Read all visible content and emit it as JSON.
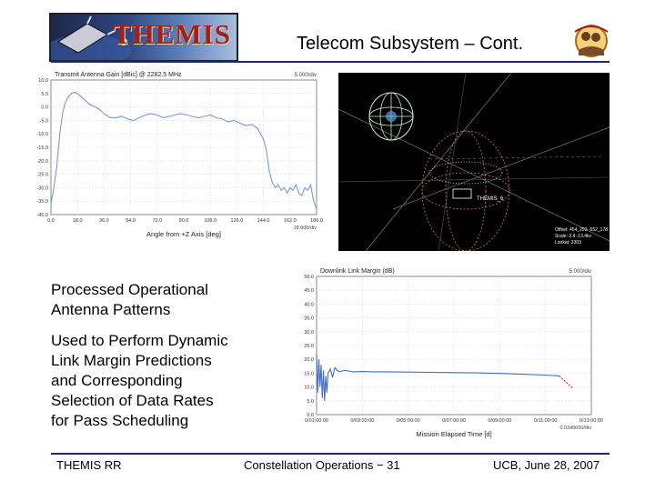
{
  "header": {
    "logo_text": "THEMIS",
    "title": "Telecom Subsystem – Cont."
  },
  "left_text": {
    "heading_line1": "Processed Operational",
    "heading_line2": "Antenna Patterns",
    "body_lines": [
      "Used to Perform Dynamic",
      "Link Margin Predictions",
      "and Corresponding",
      "Selection of Data Rates",
      "for Pass Scheduling"
    ]
  },
  "orbit_view": {
    "probe_label": "THEMIS_6",
    "readout": {
      "offset": "Offset: 454_293 -552_178",
      "scale": "Scale: 2.4 -13.4kv",
      "lookat": "Lookat: 3303"
    }
  },
  "footer": {
    "left": "THEMIS RR",
    "center": "Constellation Operations − 31",
    "right": "UCB, June 28, 2007"
  },
  "chart_data": [
    {
      "type": "line",
      "title": "Transmit Antenna Gain [dBic] @ 2282.5 MHz",
      "corner_label": "5.000/div",
      "xlabel": "Angle from +Z Axis [deg]",
      "x_div_label": "18.000/div",
      "x_ticks": [
        "0.0",
        "18.0",
        "36.0",
        "54.0",
        "72.0",
        "90.0",
        "108.0",
        "126.0",
        "144.0",
        "162.0",
        "180.0"
      ],
      "y_ticks": [
        "10.0",
        "5.0",
        "0.0",
        "-5.0",
        "-10.0",
        "-15.0",
        "-20.0",
        "-25.0",
        "-30.0",
        "-35.0",
        "-40.0"
      ],
      "xlim": [
        0,
        180
      ],
      "ylim": [
        -40,
        10
      ],
      "line_color": "#7a98d6",
      "series": [
        {
          "x": [
            0,
            2,
            4,
            6,
            8,
            10,
            12,
            14,
            16,
            18,
            20,
            22,
            24,
            26,
            28,
            30,
            33,
            36,
            40,
            44,
            48,
            52,
            56,
            60,
            64,
            68,
            72,
            76,
            80,
            84,
            88,
            92,
            96,
            100,
            104,
            108,
            112,
            116,
            120,
            124,
            128,
            132,
            136,
            140,
            144,
            146,
            148,
            150,
            152,
            154,
            156,
            158,
            160,
            162,
            164,
            166,
            168,
            170,
            172,
            174,
            176,
            178,
            180
          ],
          "y": [
            -36,
            -30,
            -22,
            -10,
            -2,
            2,
            4,
            5,
            5.5,
            5,
            4,
            3,
            2,
            1,
            0.5,
            0,
            -1,
            -2.5,
            -4,
            -4,
            -3.5,
            -4.5,
            -5,
            -4,
            -3,
            -2.5,
            -3,
            -4,
            -3.5,
            -3,
            -2.5,
            -3,
            -3.5,
            -4,
            -3.5,
            -3,
            -4,
            -4.5,
            -5.5,
            -5,
            -6,
            -7,
            -6.5,
            -8,
            -12,
            -16,
            -24,
            -28,
            -30,
            -29,
            -31,
            -30,
            -32,
            -30,
            -31,
            -29,
            -32,
            -33,
            -30,
            -31,
            -29,
            -35,
            -38
          ]
        }
      ]
    },
    {
      "type": "line",
      "title": "Downlink Link Margin (dB)",
      "corner_label": "5.000/div",
      "xlabel": "Mission Elapsed Time [d]",
      "x_div_label": "0.02d0000/div",
      "x_ticks": [
        "0/01:00:00",
        "0/03:00:00",
        "0/05:00:00",
        "0/07:00:00",
        "0/09:00:00",
        "0/11:00:00",
        "0/13:00:00"
      ],
      "y_ticks": [
        "50.0",
        "45.0",
        "40.0",
        "35.0",
        "30.0",
        "25.0",
        "20.0",
        "15.0",
        "10.0",
        "5.0",
        "0.0"
      ],
      "xlim": [
        1,
        13
      ],
      "ylim": [
        0,
        50
      ],
      "line_color": "#3f6fc4",
      "tail_color": "#e02020",
      "series": [
        {
          "x": [
            1.0,
            1.05,
            1.1,
            1.15,
            1.2,
            1.25,
            1.3,
            1.35,
            1.4,
            1.45,
            1.5,
            1.6,
            1.7,
            1.8,
            1.9,
            2.0,
            2.2,
            2.4,
            2.6,
            3.0,
            3.5,
            4.0,
            5.0,
            6.0,
            7.0,
            8.0,
            9.0,
            10.0,
            11.0,
            11.6
          ],
          "y": [
            22,
            8,
            20,
            10,
            18,
            6,
            16,
            5,
            14,
            8,
            15,
            16.5,
            13.5,
            17,
            16,
            15.5,
            16,
            15.8,
            15.5,
            15.6,
            15.5,
            15.5,
            15.4,
            15.3,
            15.2,
            15.1,
            14.9,
            14.6,
            14.3,
            14.0
          ]
        },
        {
          "x": [
            11.6,
            11.8,
            12.0,
            12.2
          ],
          "y": [
            14.0,
            12.5,
            11.0,
            9.5
          ]
        }
      ]
    }
  ]
}
